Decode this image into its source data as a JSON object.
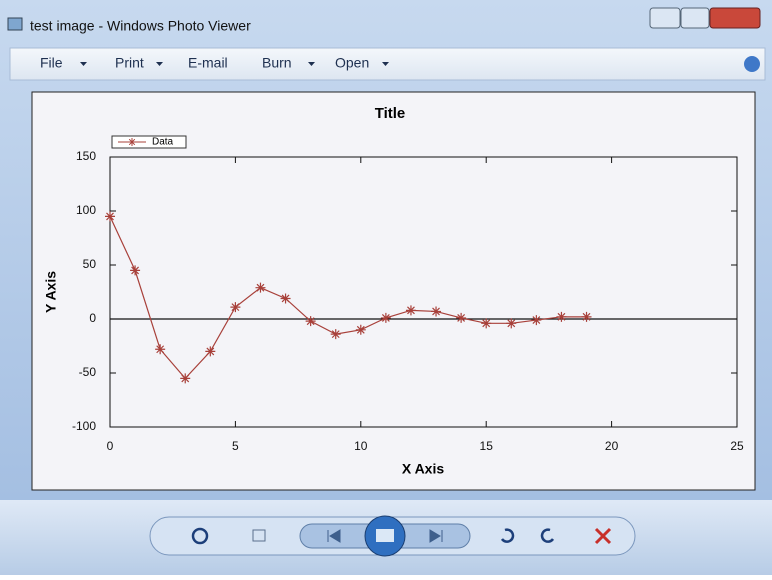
{
  "window": {
    "title": "test image - Windows Photo Viewer",
    "menu": [
      "File",
      "Print",
      "E-mail",
      "Burn",
      "Open"
    ]
  },
  "chart_data": {
    "type": "line",
    "title": "Title",
    "xlabel": "X Axis",
    "ylabel": "Y Axis",
    "x": [
      0,
      1,
      2,
      3,
      4,
      5,
      6,
      7,
      8,
      9,
      10,
      11,
      12,
      13,
      14,
      15,
      16,
      17,
      18,
      19
    ],
    "series": [
      {
        "name": "Data",
        "color": "#a8403a",
        "values": [
          95,
          45,
          -28,
          -55,
          -30,
          11,
          29,
          19,
          -2,
          -14,
          -10,
          1,
          8,
          7,
          1,
          -4,
          -4,
          -1,
          2,
          2
        ]
      }
    ],
    "xlim": [
      0,
      25
    ],
    "xticks": [
      0,
      5,
      10,
      15,
      20,
      25
    ],
    "ylim": [
      -100,
      150
    ],
    "yticks": [
      -100,
      -50,
      0,
      50,
      100,
      150
    ],
    "legend": "upper left"
  }
}
